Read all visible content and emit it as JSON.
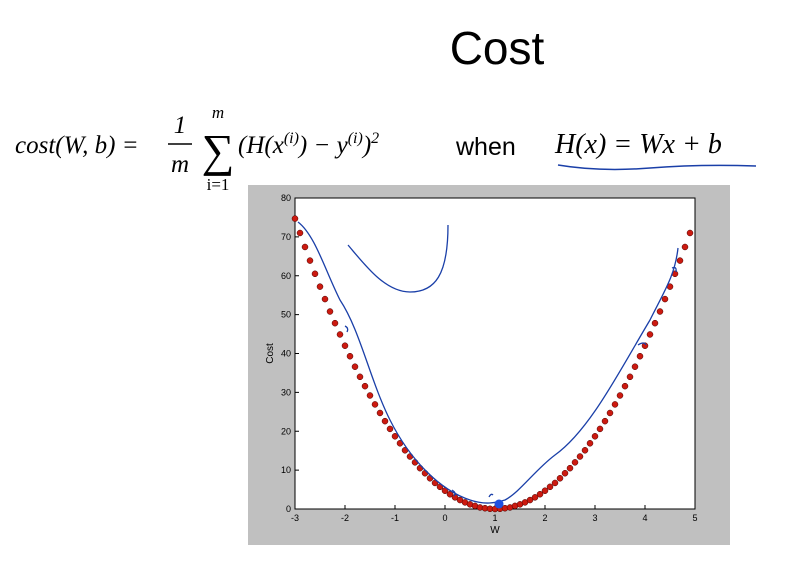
{
  "title": "Cost",
  "formula": {
    "lhs": "cost(W, b) =",
    "numerator": "1",
    "denominator": "m",
    "sum_upper": "m",
    "sum_symbol": "∑",
    "sum_lower": "i=1",
    "body": [
      "(H(x",
      "(i)",
      ") − y",
      "(i)",
      ")",
      "2"
    ]
  },
  "connector": "when",
  "hypothesis": "H(x) = Wx + b",
  "chart_data": {
    "type": "scatter",
    "xlabel": "W",
    "ylabel": "Cost",
    "color": "#cc1a10",
    "x": [
      -3,
      -2.9,
      -2.8,
      -2.7,
      -2.6,
      -2.5,
      -2.4,
      -2.3,
      -2.2,
      -2.1,
      -2,
      -1.9,
      -1.8,
      -1.7,
      -1.6,
      -1.5,
      -1.4,
      -1.3,
      -1.2,
      -1.1,
      -1,
      -0.9,
      -0.8,
      -0.7,
      -0.6,
      -0.5,
      -0.4,
      -0.3,
      -0.2,
      -0.1,
      0,
      0.1,
      0.2,
      0.3,
      0.4,
      0.5,
      0.6,
      0.7,
      0.8,
      0.9,
      1,
      1.1,
      1.2,
      1.3,
      1.4,
      1.5,
      1.6,
      1.7,
      1.8,
      1.9,
      2,
      2.1,
      2.2,
      2.3,
      2.4,
      2.5,
      2.6,
      2.7,
      2.8,
      2.9,
      3,
      3.1,
      3.2,
      3.3,
      3.4,
      3.5,
      3.6,
      3.7,
      3.8,
      3.9,
      4,
      4.1,
      4.2,
      4.3,
      4.4,
      4.5,
      4.6,
      4.7,
      4.8,
      4.9
    ],
    "values": [
      74.7,
      71.0,
      67.4,
      63.9,
      60.5,
      57.2,
      54.0,
      50.8,
      47.8,
      44.9,
      42.0,
      39.3,
      36.6,
      34.0,
      31.6,
      29.2,
      26.9,
      24.7,
      22.6,
      20.6,
      18.7,
      16.9,
      15.1,
      13.5,
      12.0,
      10.5,
      9.2,
      7.9,
      6.7,
      5.7,
      4.7,
      3.8,
      3.0,
      2.3,
      1.7,
      1.2,
      0.8,
      0.4,
      0.2,
      0.05,
      0,
      0.05,
      0.2,
      0.4,
      0.8,
      1.2,
      1.7,
      2.3,
      3.0,
      3.8,
      4.7,
      5.7,
      6.7,
      7.9,
      9.2,
      10.5,
      12.0,
      13.5,
      15.1,
      16.9,
      18.7,
      20.6,
      22.6,
      24.7,
      26.9,
      29.2,
      31.6,
      34.0,
      36.6,
      39.3,
      42.0,
      44.9,
      47.8,
      50.8,
      54.0,
      57.2,
      60.5,
      63.9,
      67.4,
      71.0
    ],
    "xlim": [
      -3,
      5
    ],
    "xticks": [
      -3,
      -2,
      -1,
      0,
      1,
      2,
      3,
      4,
      5
    ],
    "ylim": [
      0,
      80
    ],
    "yticks": [
      0,
      10,
      20,
      30,
      40,
      50,
      60,
      70,
      80
    ]
  }
}
